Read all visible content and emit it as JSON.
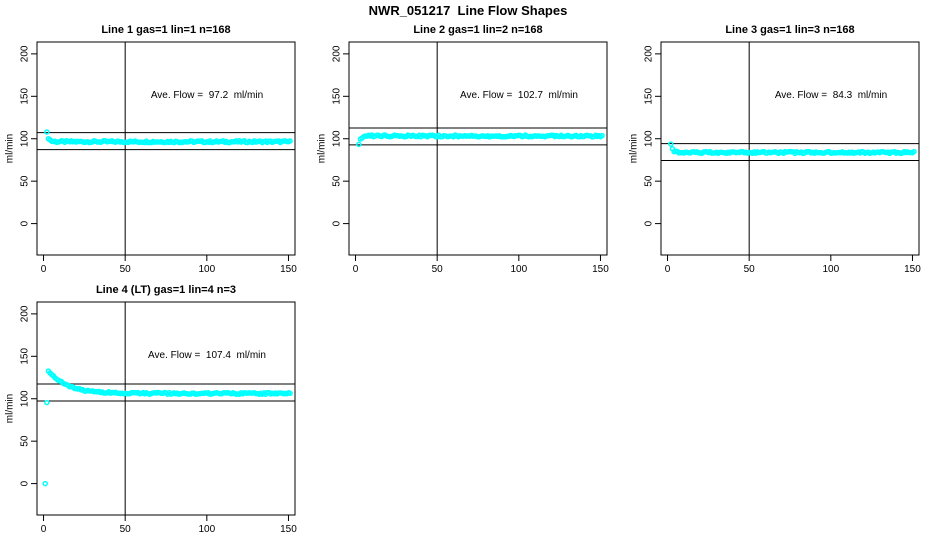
{
  "figure": {
    "title": "NWR_051217  Line Flow Shapes",
    "background_color": "#FFFFFF",
    "axis_color": "#000000",
    "point_color": "#00FFFF",
    "marker": "open-circle"
  },
  "chart_data": [
    {
      "type": "scatter",
      "title": "Line 1 gas=1 lin=1 n=168",
      "annotation": "Ave. Flow =  97.2  ml/min",
      "ave_flow_ml_min": 97.2,
      "n": 168,
      "xlabel": "",
      "ylabel": "ml/min",
      "x_ticks": [
        0,
        50,
        100,
        150
      ],
      "y_ticks": [
        0,
        50,
        100,
        150,
        200
      ],
      "xlim": [
        -4,
        154
      ],
      "ylim": [
        -37,
        214
      ],
      "grid": false,
      "vline_x": 50,
      "hlines": [
        107.2,
        87.2
      ],
      "annotation_pos": {
        "x": 100,
        "y": 150
      },
      "series": {
        "x_start": 2,
        "x_end": 151,
        "points": 150,
        "start_y": 107,
        "settle_y": 96.5,
        "decay_tau": 1.2,
        "jitter": 1.1
      },
      "outliers": []
    },
    {
      "type": "scatter",
      "title": "Line 2 gas=1 lin=2 n=168",
      "annotation": "Ave. Flow =  102.7  ml/min",
      "ave_flow_ml_min": 102.7,
      "n": 168,
      "xlabel": "",
      "ylabel": "ml/min",
      "x_ticks": [
        0,
        50,
        100,
        150
      ],
      "y_ticks": [
        0,
        50,
        100,
        150,
        200
      ],
      "xlim": [
        -4,
        154
      ],
      "ylim": [
        -37,
        214
      ],
      "grid": false,
      "vline_x": 50,
      "hlines": [
        112.7,
        92.7
      ],
      "annotation_pos": {
        "x": 100,
        "y": 150
      },
      "series": {
        "x_start": 2,
        "x_end": 151,
        "points": 150,
        "start_y": 93,
        "settle_y": 103.3,
        "decay_tau": 1.2,
        "jitter": 1.1
      },
      "outliers": []
    },
    {
      "type": "scatter",
      "title": "Line 3 gas=1 lin=3 n=168",
      "annotation": "Ave. Flow =  84.3  ml/min",
      "ave_flow_ml_min": 84.3,
      "n": 168,
      "xlabel": "",
      "ylabel": "ml/min",
      "x_ticks": [
        0,
        50,
        100,
        150
      ],
      "y_ticks": [
        0,
        50,
        100,
        150,
        200
      ],
      "xlim": [
        -4,
        154
      ],
      "ylim": [
        -37,
        214
      ],
      "grid": false,
      "vline_x": 50,
      "hlines": [
        94.3,
        74.3
      ],
      "annotation_pos": {
        "x": 100,
        "y": 150
      },
      "series": {
        "x_start": 2,
        "x_end": 151,
        "points": 150,
        "start_y": 94,
        "settle_y": 83.8,
        "decay_tau": 1.2,
        "jitter": 1.1
      },
      "outliers": []
    },
    {
      "type": "scatter",
      "title": "Line 4 (LT) gas=1 lin=4 n=3",
      "annotation": "Ave. Flow =  107.4  ml/min",
      "ave_flow_ml_min": 107.4,
      "n": 3,
      "xlabel": "",
      "ylabel": "ml/min",
      "x_ticks": [
        0,
        50,
        100,
        150
      ],
      "y_ticks": [
        0,
        50,
        100,
        150,
        200
      ],
      "xlim": [
        -4,
        154
      ],
      "ylim": [
        -37,
        214
      ],
      "grid": false,
      "vline_x": 50,
      "hlines": [
        117.4,
        97.4
      ],
      "annotation_pos": {
        "x": 100,
        "y": 150
      },
      "series": {
        "x_start": 3,
        "x_end": 151,
        "points": 149,
        "start_y": 133,
        "settle_y": 106.3,
        "decay_tau": 11,
        "jitter": 1.0
      },
      "outliers": [
        [
          1,
          0
        ],
        [
          2,
          95.5
        ]
      ]
    }
  ]
}
